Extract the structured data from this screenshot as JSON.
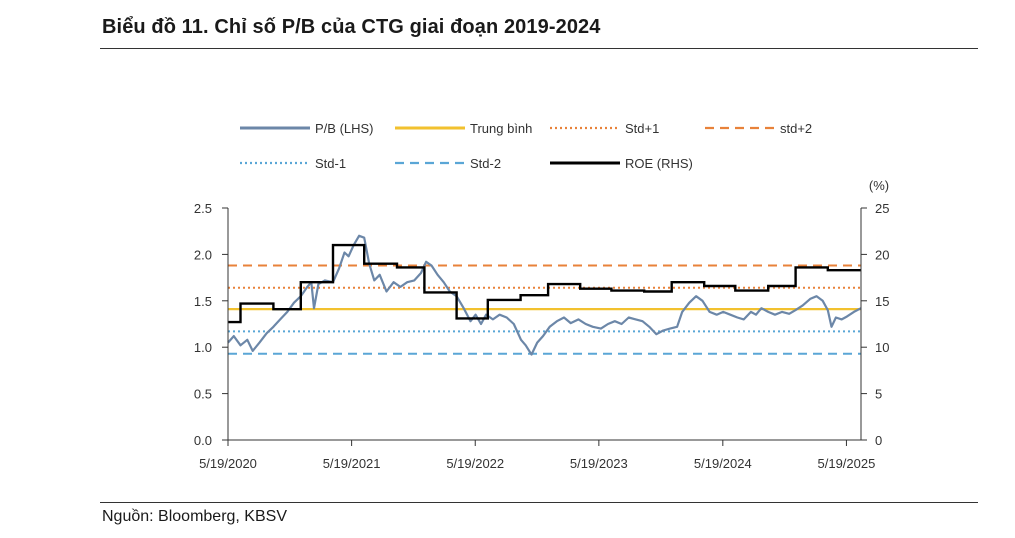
{
  "header": {
    "title": "Biểu đồ 11. Chỉ số P/B của CTG giai đoạn 2019-2024"
  },
  "footer": {
    "source": "Nguồn: Bloomberg, KBSV"
  },
  "chart_data": {
    "type": "line",
    "right_axis_unit": "(%)",
    "y_left": {
      "ticks": [
        "0.0",
        "0.5",
        "1.0",
        "1.5",
        "2.0",
        "2.5"
      ],
      "min": 0,
      "max": 2.5
    },
    "y_right": {
      "ticks": [
        "0",
        "5",
        "10",
        "15",
        "20",
        "25"
      ],
      "min": 0,
      "max": 25
    },
    "x_ticks": [
      "5/19/2020",
      "5/19/2021",
      "5/19/2022",
      "5/19/2023",
      "5/19/2024",
      "5/19/2025"
    ],
    "x_range": [
      "2020-05-19",
      "2025-07-01"
    ],
    "legend": [
      {
        "name": "P/B (LHS)",
        "style": "solid",
        "color": "#6c87a8"
      },
      {
        "name": "Trung bình",
        "style": "solid",
        "color": "#f2c12e"
      },
      {
        "name": "Std+1",
        "style": "dotted",
        "color": "#e8823a"
      },
      {
        "name": "std+2",
        "style": "dashed",
        "color": "#e8823a"
      },
      {
        "name": "Std-1",
        "style": "dotted",
        "color": "#5aa6d6"
      },
      {
        "name": "Std-2",
        "style": "dashed",
        "color": "#5aa6d6"
      },
      {
        "name": "ROE (RHS)",
        "style": "solid",
        "color": "#000000"
      }
    ],
    "reference_lines": {
      "mean": 1.41,
      "std_plus_1": 1.64,
      "std_plus_2": 1.88,
      "std_minus_1": 1.17,
      "std_minus_2": 0.93
    },
    "pb_series": {
      "name": "P/B (LHS)",
      "points": [
        [
          "2020-05-19",
          1.05
        ],
        [
          "2020-06-05",
          1.12
        ],
        [
          "2020-06-25",
          1.02
        ],
        [
          "2020-07-15",
          1.08
        ],
        [
          "2020-07-31",
          0.96
        ],
        [
          "2020-08-20",
          1.05
        ],
        [
          "2020-09-10",
          1.15
        ],
        [
          "2020-09-30",
          1.22
        ],
        [
          "2020-10-20",
          1.3
        ],
        [
          "2020-11-10",
          1.38
        ],
        [
          "2020-11-30",
          1.48
        ],
        [
          "2020-12-20",
          1.55
        ],
        [
          "2021-01-08",
          1.65
        ],
        [
          "2021-01-20",
          1.7
        ],
        [
          "2021-01-28",
          1.42
        ],
        [
          "2021-02-10",
          1.68
        ],
        [
          "2021-03-01",
          1.72
        ],
        [
          "2021-03-25",
          1.7
        ],
        [
          "2021-04-12",
          1.85
        ],
        [
          "2021-04-28",
          2.02
        ],
        [
          "2021-05-10",
          1.98
        ],
        [
          "2021-05-25",
          2.1
        ],
        [
          "2021-06-10",
          2.2
        ],
        [
          "2021-06-25",
          2.18
        ],
        [
          "2021-07-10",
          1.9
        ],
        [
          "2021-07-25",
          1.72
        ],
        [
          "2021-08-10",
          1.78
        ],
        [
          "2021-08-30",
          1.6
        ],
        [
          "2021-09-20",
          1.7
        ],
        [
          "2021-10-10",
          1.65
        ],
        [
          "2021-10-30",
          1.7
        ],
        [
          "2021-11-20",
          1.72
        ],
        [
          "2021-12-10",
          1.8
        ],
        [
          "2021-12-25",
          1.92
        ],
        [
          "2022-01-10",
          1.88
        ],
        [
          "2022-01-28",
          1.78
        ],
        [
          "2022-02-15",
          1.7
        ],
        [
          "2022-03-05",
          1.6
        ],
        [
          "2022-03-25",
          1.55
        ],
        [
          "2022-04-15",
          1.42
        ],
        [
          "2022-05-05",
          1.28
        ],
        [
          "2022-05-20",
          1.35
        ],
        [
          "2022-06-05",
          1.25
        ],
        [
          "2022-06-20",
          1.35
        ],
        [
          "2022-07-10",
          1.3
        ],
        [
          "2022-07-30",
          1.35
        ],
        [
          "2022-08-20",
          1.32
        ],
        [
          "2022-09-10",
          1.25
        ],
        [
          "2022-10-01",
          1.08
        ],
        [
          "2022-10-15",
          1.02
        ],
        [
          "2022-11-01",
          0.92
        ],
        [
          "2022-11-18",
          1.05
        ],
        [
          "2022-12-05",
          1.12
        ],
        [
          "2022-12-25",
          1.22
        ],
        [
          "2023-01-15",
          1.28
        ],
        [
          "2023-02-05",
          1.32
        ],
        [
          "2023-02-25",
          1.26
        ],
        [
          "2023-03-20",
          1.3
        ],
        [
          "2023-04-10",
          1.25
        ],
        [
          "2023-05-01",
          1.22
        ],
        [
          "2023-05-25",
          1.2
        ],
        [
          "2023-06-15",
          1.25
        ],
        [
          "2023-07-05",
          1.28
        ],
        [
          "2023-07-25",
          1.25
        ],
        [
          "2023-08-15",
          1.32
        ],
        [
          "2023-09-05",
          1.3
        ],
        [
          "2023-09-25",
          1.28
        ],
        [
          "2023-10-15",
          1.22
        ],
        [
          "2023-11-05",
          1.14
        ],
        [
          "2023-11-25",
          1.18
        ],
        [
          "2023-12-15",
          1.2
        ],
        [
          "2024-01-05",
          1.22
        ],
        [
          "2024-01-20",
          1.38
        ],
        [
          "2024-02-10",
          1.48
        ],
        [
          "2024-03-01",
          1.55
        ],
        [
          "2024-03-20",
          1.5
        ],
        [
          "2024-04-10",
          1.38
        ],
        [
          "2024-05-01",
          1.35
        ],
        [
          "2024-05-20",
          1.38
        ],
        [
          "2024-06-10",
          1.35
        ],
        [
          "2024-07-01",
          1.32
        ],
        [
          "2024-07-20",
          1.3
        ],
        [
          "2024-08-10",
          1.38
        ],
        [
          "2024-08-25",
          1.35
        ],
        [
          "2024-09-10",
          1.42
        ],
        [
          "2024-09-30",
          1.38
        ],
        [
          "2024-10-20",
          1.35
        ],
        [
          "2024-11-10",
          1.38
        ],
        [
          "2024-12-01",
          1.36
        ],
        [
          "2024-12-20",
          1.4
        ],
        [
          "2025-01-10",
          1.45
        ],
        [
          "2025-02-01",
          1.52
        ],
        [
          "2025-02-20",
          1.55
        ],
        [
          "2025-03-10",
          1.5
        ],
        [
          "2025-03-25",
          1.4
        ],
        [
          "2025-04-05",
          1.22
        ],
        [
          "2025-04-18",
          1.32
        ],
        [
          "2025-05-05",
          1.3
        ],
        [
          "2025-05-20",
          1.33
        ],
        [
          "2025-06-10",
          1.38
        ],
        [
          "2025-07-01",
          1.42
        ]
      ]
    },
    "roe_series": {
      "name": "ROE (RHS)",
      "steps": [
        [
          "2020-05-19",
          12.7
        ],
        [
          "2020-06-25",
          14.7
        ],
        [
          "2020-09-30",
          14.1
        ],
        [
          "2020-12-20",
          17.0
        ],
        [
          "2021-03-25",
          21.0
        ],
        [
          "2021-06-25",
          19.0
        ],
        [
          "2021-09-30",
          18.6
        ],
        [
          "2021-12-20",
          15.9
        ],
        [
          "2022-03-25",
          13.1
        ],
        [
          "2022-06-25",
          15.1
        ],
        [
          "2022-09-30",
          15.6
        ],
        [
          "2022-12-20",
          16.8
        ],
        [
          "2023-03-25",
          16.3
        ],
        [
          "2023-06-25",
          16.1
        ],
        [
          "2023-09-30",
          16.0
        ],
        [
          "2023-12-20",
          17.0
        ],
        [
          "2024-03-25",
          16.6
        ],
        [
          "2024-06-25",
          16.1
        ],
        [
          "2024-09-30",
          16.6
        ],
        [
          "2024-12-20",
          18.6
        ],
        [
          "2025-03-25",
          18.3
        ],
        [
          "2025-07-01",
          18.3
        ]
      ]
    }
  }
}
